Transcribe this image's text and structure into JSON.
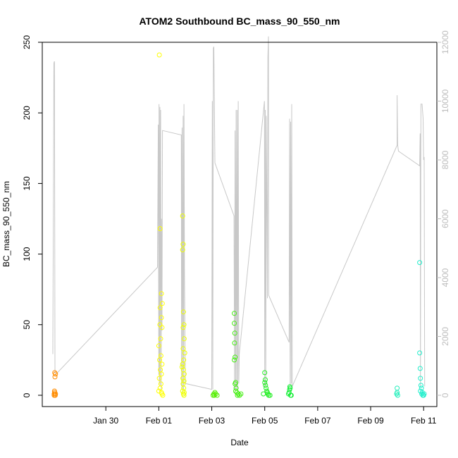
{
  "chart_data": {
    "type": "scatter",
    "title": "ATOM2 Southbound BC_mass_90_550_nm",
    "xlabel": "Date",
    "ylabel": "BC_mass_90_550_nm",
    "xlim_days": [
      27.6,
      42.5
    ],
    "ylim": [
      -8,
      250
    ],
    "y2lim": [
      -384,
      12000
    ],
    "x_ticks": [
      {
        "day": 30,
        "label": "Jan 30"
      },
      {
        "day": 32,
        "label": "Feb 01"
      },
      {
        "day": 34,
        "label": "Feb 03"
      },
      {
        "day": 36,
        "label": "Feb 05"
      },
      {
        "day": 38,
        "label": "Feb 07"
      },
      {
        "day": 40,
        "label": "Feb 09"
      },
      {
        "day": 42,
        "label": "Feb 11"
      }
    ],
    "y_ticks": [
      {
        "value": 0,
        "label": "0"
      },
      {
        "value": 50,
        "label": "50"
      },
      {
        "value": 100,
        "label": "100"
      },
      {
        "value": 150,
        "label": "150"
      },
      {
        "value": 200,
        "label": "200"
      },
      {
        "value": 250,
        "label": "250"
      }
    ],
    "y2_ticks": [
      {
        "value": 0,
        "label": "0"
      },
      {
        "value": 2000,
        "label": "2000"
      },
      {
        "value": 4000,
        "label": "4000"
      },
      {
        "value": 6000,
        "label": "6000"
      },
      {
        "value": 8000,
        "label": "8000"
      },
      {
        "value": 10000,
        "label": "10000"
      },
      {
        "value": 12000,
        "label": "12000"
      }
    ],
    "altitude_line_color": "#c8c8c8",
    "scatter_groups": [
      {
        "color": "#ff8c00",
        "points": [
          [
            28.05,
            0
          ],
          [
            28.05,
            1
          ],
          [
            28.07,
            2
          ],
          [
            28.06,
            3
          ],
          [
            28.09,
            0
          ],
          [
            28.1,
            1
          ],
          [
            28.08,
            13
          ],
          [
            28.1,
            15
          ],
          [
            28.07,
            16
          ]
        ]
      },
      {
        "color": "#ffff00",
        "points": [
          [
            32.02,
            241
          ],
          [
            32.05,
            118
          ],
          [
            32.1,
            72
          ],
          [
            32.05,
            62
          ],
          [
            32.1,
            55
          ],
          [
            32.12,
            48
          ],
          [
            32.0,
            35
          ],
          [
            32.08,
            28
          ],
          [
            32.03,
            25
          ],
          [
            32.12,
            22
          ],
          [
            32.06,
            18
          ],
          [
            32.1,
            15
          ],
          [
            32.02,
            12
          ],
          [
            32.08,
            8
          ],
          [
            32.05,
            5
          ],
          [
            32.0,
            3
          ],
          [
            32.1,
            2
          ],
          [
            32.12,
            1
          ],
          [
            32.15,
            0
          ],
          [
            32.07,
            40
          ],
          [
            32.13,
            65
          ],
          [
            32.04,
            50
          ]
        ]
      },
      {
        "color": "#eeff00",
        "points": [
          [
            32.9,
            127
          ],
          [
            32.92,
            107
          ],
          [
            32.9,
            103
          ],
          [
            32.93,
            59
          ],
          [
            32.95,
            50
          ],
          [
            32.92,
            48
          ],
          [
            32.96,
            40
          ],
          [
            32.92,
            33
          ],
          [
            32.94,
            25
          ],
          [
            32.9,
            22
          ],
          [
            32.93,
            18
          ],
          [
            32.96,
            15
          ],
          [
            32.91,
            12
          ],
          [
            32.95,
            10
          ],
          [
            32.92,
            8
          ],
          [
            32.94,
            5
          ],
          [
            32.9,
            3
          ],
          [
            32.96,
            2
          ],
          [
            32.93,
            1
          ],
          [
            32.95,
            0
          ],
          [
            32.98,
            30
          ],
          [
            32.88,
            20
          ]
        ]
      },
      {
        "color": "#55ee00",
        "points": [
          [
            34.05,
            0
          ],
          [
            34.1,
            0
          ],
          [
            34.15,
            1
          ],
          [
            34.2,
            0
          ],
          [
            34.12,
            2
          ],
          [
            34.08,
            1
          ]
        ]
      },
      {
        "color": "#44ee11",
        "points": [
          [
            34.85,
            58
          ],
          [
            34.85,
            51
          ],
          [
            34.87,
            44
          ],
          [
            34.86,
            37
          ],
          [
            34.88,
            27
          ],
          [
            34.85,
            25
          ],
          [
            34.9,
            9
          ],
          [
            34.88,
            8
          ],
          [
            34.92,
            5
          ],
          [
            34.9,
            3
          ],
          [
            34.95,
            2
          ],
          [
            35.0,
            1
          ],
          [
            34.97,
            0
          ],
          [
            35.05,
            0
          ],
          [
            35.1,
            1
          ]
        ]
      },
      {
        "color": "#22ee22",
        "points": [
          [
            36.0,
            16
          ],
          [
            36.02,
            11
          ],
          [
            36.0,
            9
          ],
          [
            36.03,
            7
          ],
          [
            36.05,
            5
          ],
          [
            36.08,
            3
          ],
          [
            36.1,
            2
          ],
          [
            35.95,
            1
          ],
          [
            36.15,
            0
          ],
          [
            36.2,
            0
          ],
          [
            36.12,
            1
          ]
        ]
      },
      {
        "color": "#11ee33",
        "points": [
          [
            36.95,
            6
          ],
          [
            36.96,
            5
          ],
          [
            36.94,
            4
          ],
          [
            36.92,
            2
          ],
          [
            36.9,
            1
          ],
          [
            36.98,
            0
          ],
          [
            37.0,
            0
          ]
        ]
      },
      {
        "color": "#22eebb",
        "points": [
          [
            41.0,
            5
          ],
          [
            41.0,
            2
          ],
          [
            41.02,
            0
          ],
          [
            40.98,
            1
          ]
        ]
      },
      {
        "color": "#22eecc",
        "points": [
          [
            41.85,
            94
          ],
          [
            41.85,
            30
          ],
          [
            41.87,
            19
          ],
          [
            41.88,
            12
          ],
          [
            41.9,
            7
          ],
          [
            41.92,
            5
          ],
          [
            41.88,
            3
          ],
          [
            41.95,
            2
          ],
          [
            41.93,
            1
          ],
          [
            41.97,
            0
          ],
          [
            42.0,
            0
          ],
          [
            42.02,
            1
          ]
        ]
      }
    ],
    "altitude_line": [
      [
        28.0,
        1400
      ],
      [
        28.04,
        11300
      ],
      [
        28.06,
        11350
      ],
      [
        28.08,
        800
      ],
      [
        28.1,
        700
      ],
      [
        31.95,
        4350
      ],
      [
        31.98,
        9200
      ],
      [
        32.0,
        700
      ],
      [
        32.01,
        9900
      ],
      [
        32.02,
        400
      ],
      [
        32.04,
        9800
      ],
      [
        32.05,
        300
      ],
      [
        32.07,
        9700
      ],
      [
        32.09,
        200
      ],
      [
        32.1,
        6000
      ],
      [
        32.12,
        2200
      ],
      [
        32.14,
        9000
      ],
      [
        32.85,
        8850
      ],
      [
        32.86,
        300
      ],
      [
        32.88,
        9100
      ],
      [
        32.9,
        200
      ],
      [
        32.92,
        9500
      ],
      [
        32.94,
        200
      ],
      [
        32.95,
        9900
      ],
      [
        32.97,
        4300
      ],
      [
        33.0,
        400
      ],
      [
        34.0,
        200
      ],
      [
        34.02,
        10000
      ],
      [
        34.04,
        200
      ],
      [
        34.06,
        11800
      ],
      [
        34.08,
        11850
      ],
      [
        34.12,
        7900
      ],
      [
        34.84,
        6100
      ],
      [
        34.86,
        200
      ],
      [
        34.88,
        9000
      ],
      [
        34.9,
        200
      ],
      [
        34.92,
        9700
      ],
      [
        34.94,
        200
      ],
      [
        34.96,
        9700
      ],
      [
        34.98,
        200
      ],
      [
        35.0,
        10000
      ],
      [
        35.02,
        400
      ],
      [
        35.04,
        1400
      ],
      [
        35.99,
        10000
      ],
      [
        36.0,
        300
      ],
      [
        36.02,
        9700
      ],
      [
        36.04,
        300
      ],
      [
        36.06,
        9500
      ],
      [
        36.1,
        3300
      ],
      [
        36.12,
        11500
      ],
      [
        36.14,
        12200
      ],
      [
        36.15,
        3400
      ],
      [
        36.92,
        1800
      ],
      [
        36.94,
        9400
      ],
      [
        36.96,
        300
      ],
      [
        36.98,
        9300
      ],
      [
        37.0,
        400
      ],
      [
        37.02,
        9900
      ],
      [
        37.04,
        300
      ],
      [
        41.0,
        8500
      ],
      [
        41.0,
        10200
      ],
      [
        41.02,
        8500
      ],
      [
        41.05,
        8300
      ],
      [
        41.85,
        7800
      ],
      [
        41.87,
        8900
      ],
      [
        41.88,
        300
      ],
      [
        41.9,
        9900
      ],
      [
        41.94,
        9900
      ],
      [
        41.98,
        9400
      ],
      [
        42.0,
        8000
      ],
      [
        42.02,
        8100
      ],
      [
        42.04,
        300
      ]
    ]
  }
}
